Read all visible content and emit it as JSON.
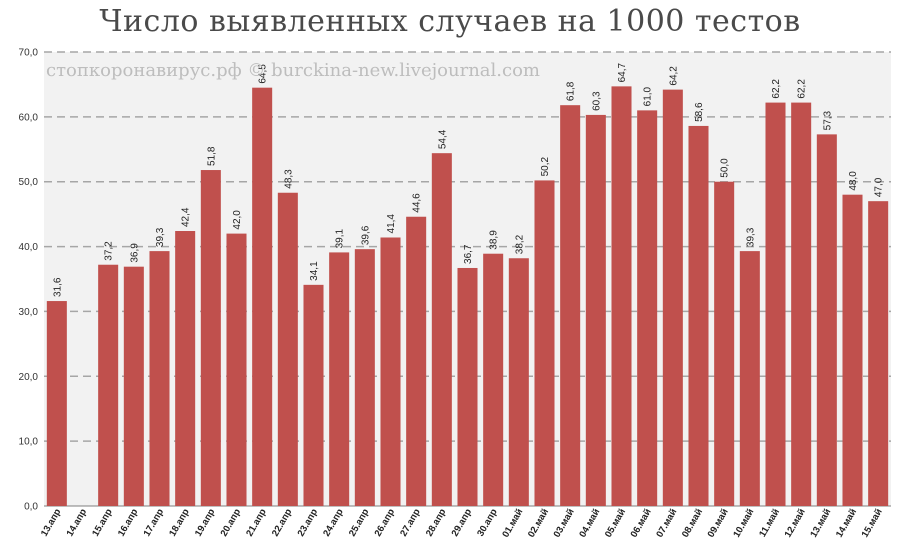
{
  "chart_data": {
    "type": "bar",
    "title": "Число выявленных случаев на 1000 тестов",
    "watermark": "стопкоронавирус.рф © burckina-new.livejournal.com",
    "ylim": [
      0,
      70
    ],
    "yticks": [
      "0,0",
      "10,0",
      "20,0",
      "30,0",
      "40,0",
      "50,0",
      "60,0",
      "70,0"
    ],
    "grid": true,
    "colors": {
      "bar": "#c0504d",
      "plot_bg": "#f2f2f2",
      "grid": "#a6a6a6"
    },
    "categories": [
      "13.апр",
      "14.апр",
      "15.апр",
      "16.апр",
      "17.апр",
      "18.апр",
      "19.апр",
      "20.апр",
      "21.апр",
      "22.апр",
      "23.апр",
      "24.апр",
      "25.апр",
      "26.апр",
      "27.апр",
      "28.апр",
      "29.апр",
      "30.апр",
      "01.май",
      "02.май",
      "03.май",
      "04.май",
      "05.май",
      "06.май",
      "07.май",
      "08.май",
      "09.май",
      "10.май",
      "11.май",
      "12.май",
      "13.май",
      "14.май",
      "15.май"
    ],
    "values": [
      31.6,
      null,
      37.2,
      36.9,
      39.3,
      42.4,
      51.8,
      42.0,
      64.5,
      48.3,
      34.1,
      39.1,
      39.6,
      41.4,
      44.6,
      54.4,
      36.7,
      38.9,
      38.2,
      50.2,
      61.8,
      60.3,
      64.7,
      61.0,
      64.2,
      58.6,
      50.0,
      39.3,
      62.2,
      62.2,
      57.3,
      48.0,
      47.0
    ],
    "labels": [
      "31,6",
      "",
      "37,2",
      "36,9",
      "39,3",
      "42,4",
      "51,8",
      "42,0",
      "64,5",
      "48,3",
      "34,1",
      "39,1",
      "39,6",
      "41,4",
      "44,6",
      "54,4",
      "36,7",
      "38,9",
      "38,2",
      "50,2",
      "61,8",
      "60,3",
      "64,7",
      "61,0",
      "64,2",
      "58,6",
      "50,0",
      "39,3",
      "62,2",
      "62,2",
      "57,3",
      "48,0",
      "47,0"
    ]
  }
}
